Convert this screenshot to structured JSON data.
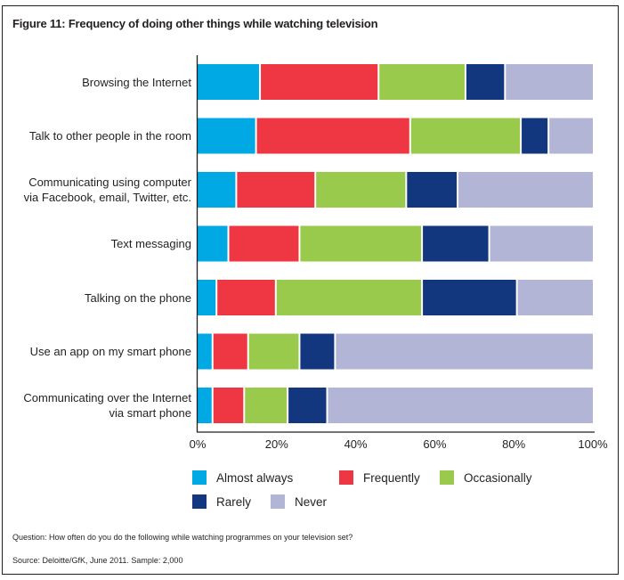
{
  "figure": {
    "title": "Figure 11: Frequency of doing other things while watching television",
    "question": "Question: How often do you do the following while watching programmes on your television set?",
    "source": "Source: Deloitte/GfK, June 2011. Sample: 2,000"
  },
  "chart_data": {
    "type": "bar",
    "orientation": "horizontal",
    "stacked": true,
    "title": "Figure 11: Frequency of doing other things while watching television",
    "xlabel": "",
    "ylabel": "",
    "xlim": [
      0,
      100
    ],
    "x_ticks": [
      "0%",
      "20%",
      "40%",
      "60%",
      "80%",
      "100%"
    ],
    "x_tick_values": [
      0,
      20,
      40,
      60,
      80,
      100
    ],
    "grid": false,
    "legend_position": "bottom",
    "categories": [
      [
        "Browsing the Internet"
      ],
      [
        "Talk to other people in the room"
      ],
      [
        "Communicating using computer",
        "via Facebook, email, Twitter, etc."
      ],
      [
        "Text messaging"
      ],
      [
        "Talking on the phone"
      ],
      [
        "Use an app on my smart phone"
      ],
      [
        "Communicating over the Internet",
        "via smart phone"
      ]
    ],
    "series": [
      {
        "name": "Almost always",
        "color": "#00a9e4",
        "values": [
          16,
          15,
          10,
          8,
          5,
          4,
          4
        ]
      },
      {
        "name": "Frequently",
        "color": "#ef3743",
        "values": [
          30,
          39,
          20,
          18,
          15,
          9,
          8
        ]
      },
      {
        "name": "Occasionally",
        "color": "#99ca4b",
        "values": [
          22,
          28,
          23,
          31,
          37,
          13,
          11
        ]
      },
      {
        "name": "Rarely",
        "color": "#13377f",
        "values": [
          10,
          7,
          13,
          17,
          24,
          9,
          10
        ]
      },
      {
        "name": "Never",
        "color": "#b2b5d5",
        "values": [
          22,
          11,
          34,
          26,
          19,
          65,
          67
        ]
      }
    ]
  }
}
